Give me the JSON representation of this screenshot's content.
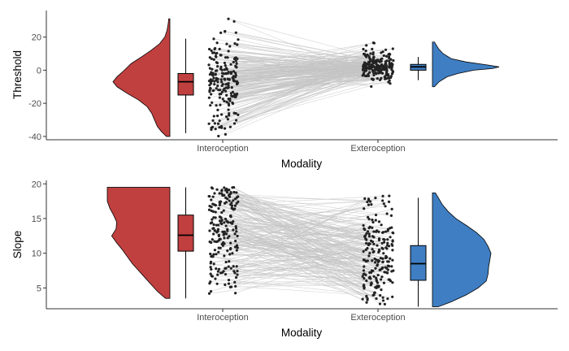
{
  "chart_data": [
    {
      "type": "raincloud",
      "xlabel": "Modality",
      "ylabel": "Threshold",
      "ylim": [
        -42,
        36
      ],
      "yticks": [
        -40,
        -20,
        0,
        20
      ],
      "categories": [
        "Interoception",
        "Exteroception"
      ],
      "grid": false,
      "series": [
        {
          "name": "Interoception",
          "color": "#c0403f",
          "min": -38,
          "q1": -15,
          "median": -7,
          "q3": -2,
          "max": 19,
          "outliers": [
            31
          ],
          "density": [
            [
              -40,
              0.06
            ],
            [
              -37,
              0.15
            ],
            [
              -34,
              0.22
            ],
            [
              -30,
              0.27
            ],
            [
              -26,
              0.32
            ],
            [
              -22,
              0.4
            ],
            [
              -18,
              0.55
            ],
            [
              -14,
              0.75
            ],
            [
              -10,
              0.93
            ],
            [
              -7,
              1.0
            ],
            [
              -4,
              0.93
            ],
            [
              0,
              0.8
            ],
            [
              4,
              0.68
            ],
            [
              8,
              0.5
            ],
            [
              12,
              0.33
            ],
            [
              16,
              0.18
            ],
            [
              20,
              0.09
            ],
            [
              24,
              0.05
            ],
            [
              28,
              0.03
            ],
            [
              31,
              0.02
            ]
          ]
        },
        {
          "name": "Exteroception",
          "color": "#3f7ec2",
          "min": -6,
          "q1": 0,
          "median": 2,
          "q3": 3.5,
          "max": 8,
          "outliers": [],
          "density": [
            [
              -10,
              0.03
            ],
            [
              -7,
              0.1
            ],
            [
              -4,
              0.22
            ],
            [
              -2,
              0.38
            ],
            [
              0,
              0.62
            ],
            [
              1,
              0.9
            ],
            [
              2,
              1.0
            ],
            [
              3,
              0.85
            ],
            [
              5,
              0.5
            ],
            [
              7,
              0.28
            ],
            [
              10,
              0.16
            ],
            [
              13,
              0.09
            ],
            [
              17,
              0.03
            ]
          ]
        }
      ]
    },
    {
      "type": "raincloud",
      "xlabel": "Modality",
      "ylabel": "Slope",
      "ylim": [
        2,
        20.5
      ],
      "yticks": [
        5,
        10,
        15,
        20
      ],
      "categories": [
        "Interoception",
        "Exteroception"
      ],
      "grid": false,
      "series": [
        {
          "name": "Interoception",
          "color": "#c0403f",
          "min": 3.5,
          "q1": 10.3,
          "median": 12.6,
          "q3": 15.5,
          "max": 19.5,
          "outliers": [],
          "density": [
            [
              3.5,
              0.07
            ],
            [
              4.5,
              0.2
            ],
            [
              5.5,
              0.3
            ],
            [
              6.5,
              0.4
            ],
            [
              7.5,
              0.5
            ],
            [
              8.5,
              0.6
            ],
            [
              9.5,
              0.68
            ],
            [
              10.5,
              0.76
            ],
            [
              11.5,
              0.85
            ],
            [
              12.5,
              0.93
            ],
            [
              13.5,
              0.86
            ],
            [
              14.5,
              0.85
            ],
            [
              15.5,
              0.9
            ],
            [
              16.5,
              0.96
            ],
            [
              17.5,
              1.0
            ],
            [
              18.5,
              1.0
            ],
            [
              19.5,
              1.0
            ]
          ]
        },
        {
          "name": "Exteroception",
          "color": "#3f7ec2",
          "min": 2.3,
          "q1": 6.1,
          "median": 8.5,
          "q3": 11.1,
          "max": 18.0,
          "outliers": [],
          "density": [
            [
              2.3,
              0.1
            ],
            [
              3.0,
              0.32
            ],
            [
              4.0,
              0.58
            ],
            [
              5.0,
              0.78
            ],
            [
              6.0,
              0.92
            ],
            [
              7.0,
              0.95
            ],
            [
              8.0,
              0.96
            ],
            [
              9.0,
              0.98
            ],
            [
              10.0,
              1.0
            ],
            [
              11.0,
              0.95
            ],
            [
              12.0,
              0.88
            ],
            [
              13.0,
              0.75
            ],
            [
              14.0,
              0.58
            ],
            [
              15.0,
              0.4
            ],
            [
              16.0,
              0.27
            ],
            [
              17.0,
              0.17
            ],
            [
              18.0,
              0.1
            ],
            [
              18.7,
              0.05
            ]
          ]
        }
      ]
    }
  ]
}
